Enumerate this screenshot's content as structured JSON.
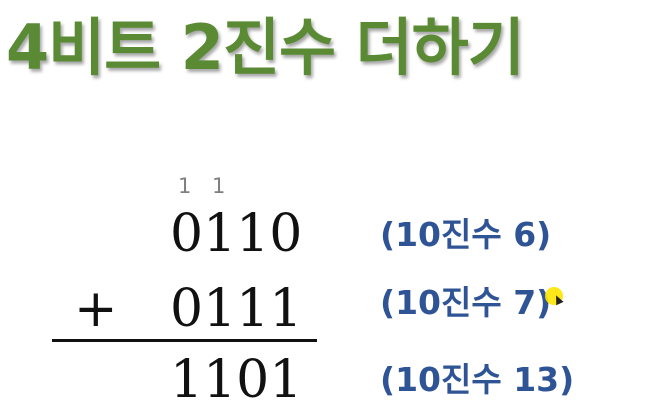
{
  "title": "4비트 2진수 더하기",
  "carries": [
    "1",
    "1"
  ],
  "operand_a": "0110",
  "operand_b": "0111",
  "operator": "+",
  "result": "1101",
  "notes": {
    "a": "(10진수 6)",
    "b": "(10진수 7)",
    "result": "(10진수 13)"
  },
  "colors": {
    "title": "#5b8a35",
    "note": "#2f5496",
    "carry": "#7f7f7f",
    "pointer_highlight": "#ffe600"
  }
}
